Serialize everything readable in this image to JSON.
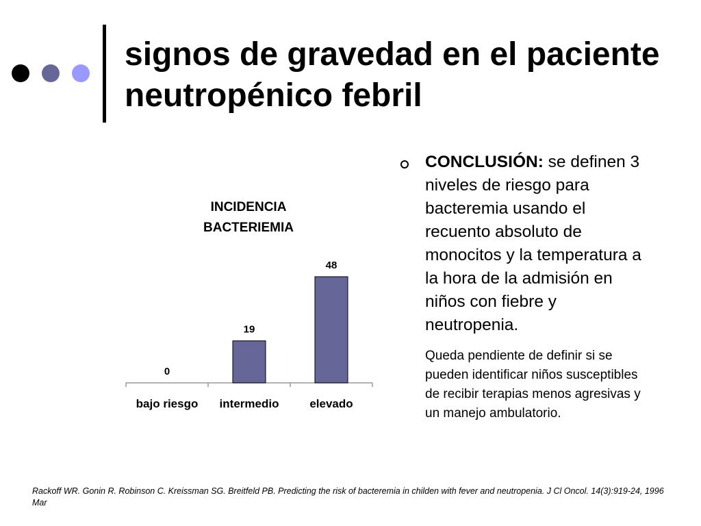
{
  "theme": {
    "dot_colors": [
      "#000000",
      "#666699",
      "#9999ff"
    ],
    "bar_color": "#666699",
    "bar_stroke": "#000000"
  },
  "slide": {
    "title": "signos de gravedad en el paciente neutropénico febril"
  },
  "chart_data": {
    "type": "bar",
    "title": "INCIDENCIA BACTERIEMIA",
    "title_lines": [
      "INCIDENCIA",
      "BACTERIEMIA"
    ],
    "categories": [
      "bajo riesgo",
      "intermedio",
      "elevado"
    ],
    "values": [
      0,
      19,
      48
    ],
    "data_labels": [
      "0",
      "19",
      "48"
    ],
    "xlabel": "",
    "ylabel": "",
    "ylim": [
      0,
      48
    ],
    "grid": false,
    "legend": null
  },
  "conclusion": {
    "lead": "CONCLUSIÓN:",
    "text": " se definen 3 niveles de riesgo para bacteremia usando el recuento absoluto de monocitos y la temperatura a la hora de la admisión en niños con fiebre y neutropenia.",
    "note": "Queda pendiente de definir si se pueden identificar niños susceptibles de recibir terapias menos agresivas y un manejo ambulatorio."
  },
  "citation": "Rackoff WR. Gonin R. Robinson C. Kreissman SG. Breitfeld PB. Predicting the risk of bacteremia in childen with fever and neutropenia. J Cl Oncol. 14(3):919-24, 1996 Mar"
}
